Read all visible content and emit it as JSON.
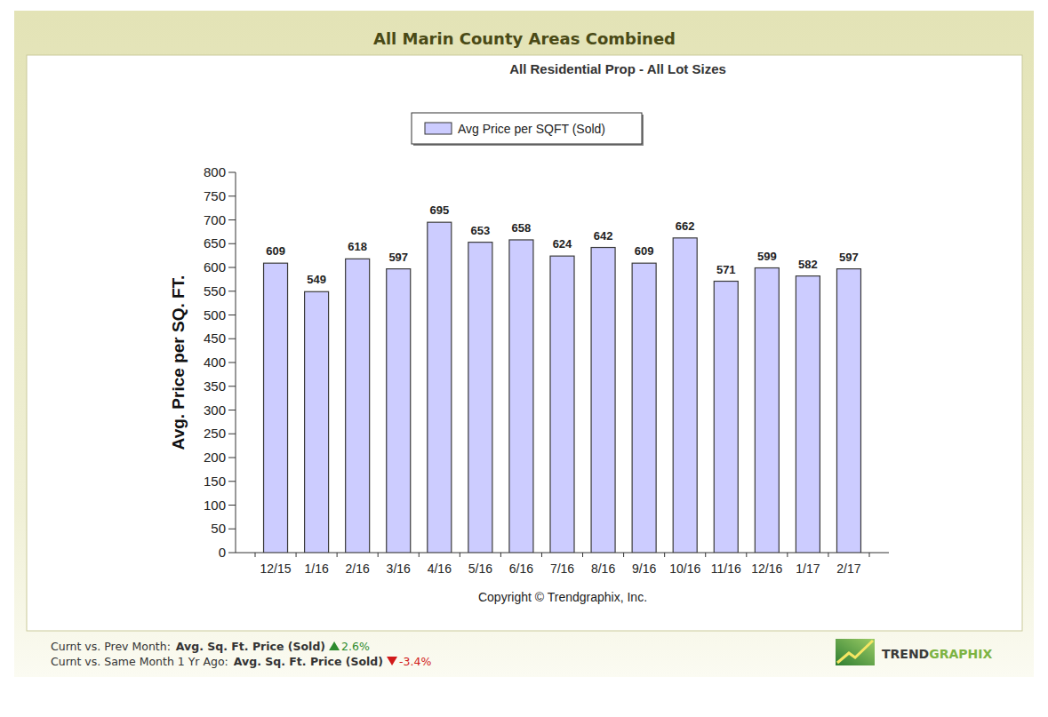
{
  "chart_data": {
    "type": "bar",
    "title": "All Marin County Areas Combined",
    "subtitle": "All Residential Prop - All Lot Sizes",
    "y_label": "Avg. Price per SQ. FT.",
    "annotations": [
      "Copyright © Trendgraphix, Inc."
    ],
    "categories": [
      "12/15",
      "1/16",
      "2/16",
      "3/16",
      "4/16",
      "5/16",
      "6/16",
      "7/16",
      "8/16",
      "9/16",
      "10/16",
      "11/16",
      "12/16",
      "1/17",
      "2/17"
    ],
    "series": [
      {
        "name": "Avg Price per SQFT (Sold)",
        "color": "#ccccff",
        "values": [
          609,
          549,
          618,
          597,
          695,
          653,
          658,
          624,
          642,
          609,
          662,
          571,
          599,
          582,
          597
        ]
      }
    ],
    "ylim": [
      0,
      800
    ],
    "yticks": [
      0,
      50,
      100,
      150,
      200,
      250,
      300,
      350,
      400,
      450,
      500,
      550,
      600,
      650,
      700,
      750,
      800
    ],
    "grid": false,
    "legend": "top",
    "data_labels": true
  },
  "footer": {
    "comparisons": [
      {
        "label": "Curnt vs. Prev Month:",
        "metric": "Avg. Sq. Ft. Price (Sold)",
        "change": "2.6%",
        "direction": "up"
      },
      {
        "label": "Curnt vs. Same Month 1 Yr Ago:",
        "metric": "Avg. Sq. Ft. Price (Sold)",
        "change": "-3.4%",
        "direction": "down"
      }
    ],
    "logo": {
      "first": "TREND",
      "second": "GRAPHIX"
    }
  }
}
